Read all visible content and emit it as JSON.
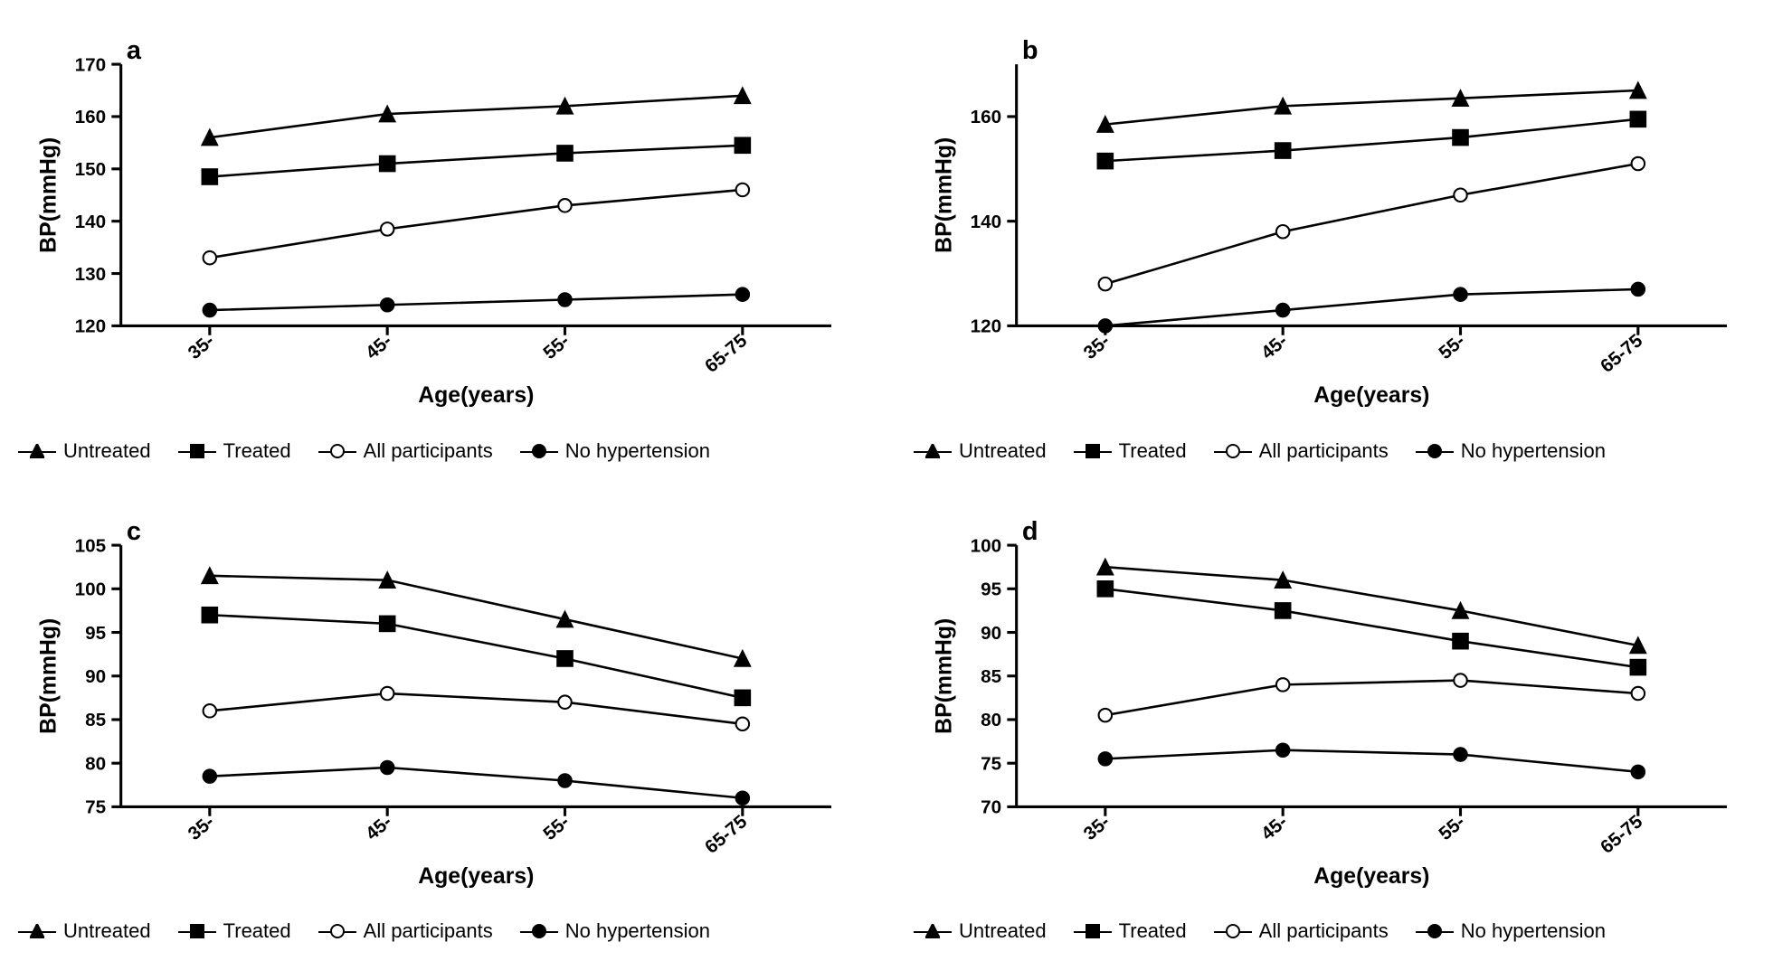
{
  "global": {
    "x_categories": [
      "35-",
      "45-",
      "55-",
      "65-75"
    ],
    "x_label": "Age(years)",
    "y_label": "BP(mmHg)",
    "colors": {
      "line": "#000000",
      "axis": "#000000",
      "background": "#ffffff",
      "text": "#000000"
    },
    "line_width": 2.5,
    "marker_size": 8,
    "font": {
      "panel_letter_size": 28,
      "panel_letter_weight": "bold",
      "axis_label_size": 24,
      "axis_label_weight": "bold",
      "tick_label_size": 20,
      "tick_label_weight": "bold",
      "legend_size": 22
    },
    "series_defs": [
      {
        "key": "untreated",
        "label": "Untreated",
        "marker": "triangle",
        "fill": "solid"
      },
      {
        "key": "treated",
        "label": "Treated",
        "marker": "square",
        "fill": "solid"
      },
      {
        "key": "all",
        "label": "All participants",
        "marker": "circle",
        "fill": "open"
      },
      {
        "key": "nohtn",
        "label": "No hypertension",
        "marker": "circle",
        "fill": "solid"
      }
    ]
  },
  "panels": [
    {
      "letter": "a",
      "ylim": [
        120,
        170
      ],
      "ytick_step": 10,
      "series": {
        "untreated": [
          156,
          160.5,
          162,
          164
        ],
        "treated": [
          148.5,
          151,
          153,
          154.5
        ],
        "all": [
          133,
          138.5,
          143,
          146
        ],
        "nohtn": [
          123,
          124,
          125,
          126
        ]
      }
    },
    {
      "letter": "b",
      "ylim": [
        120,
        170
      ],
      "ytick_step": 20,
      "series": {
        "untreated": [
          158.5,
          162,
          163.5,
          165
        ],
        "treated": [
          151.5,
          153.5,
          156,
          159.5
        ],
        "all": [
          128,
          138,
          145,
          151
        ],
        "nohtn": [
          120,
          123,
          126,
          127
        ]
      }
    },
    {
      "letter": "c",
      "ylim": [
        75,
        105
      ],
      "ytick_step": 5,
      "series": {
        "untreated": [
          101.5,
          101,
          96.5,
          92
        ],
        "treated": [
          97,
          96,
          92,
          87.5
        ],
        "all": [
          86,
          88,
          87,
          84.5
        ],
        "nohtn": [
          78.5,
          79.5,
          78,
          76
        ]
      }
    },
    {
      "letter": "d",
      "ylim": [
        70,
        100
      ],
      "ytick_step": 5,
      "series": {
        "untreated": [
          97.5,
          96,
          92.5,
          88.5
        ],
        "treated": [
          95,
          92.5,
          89,
          86
        ],
        "all": [
          80.5,
          84,
          84.5,
          83
        ],
        "nohtn": [
          75.5,
          76.5,
          76,
          74
        ]
      }
    }
  ]
}
